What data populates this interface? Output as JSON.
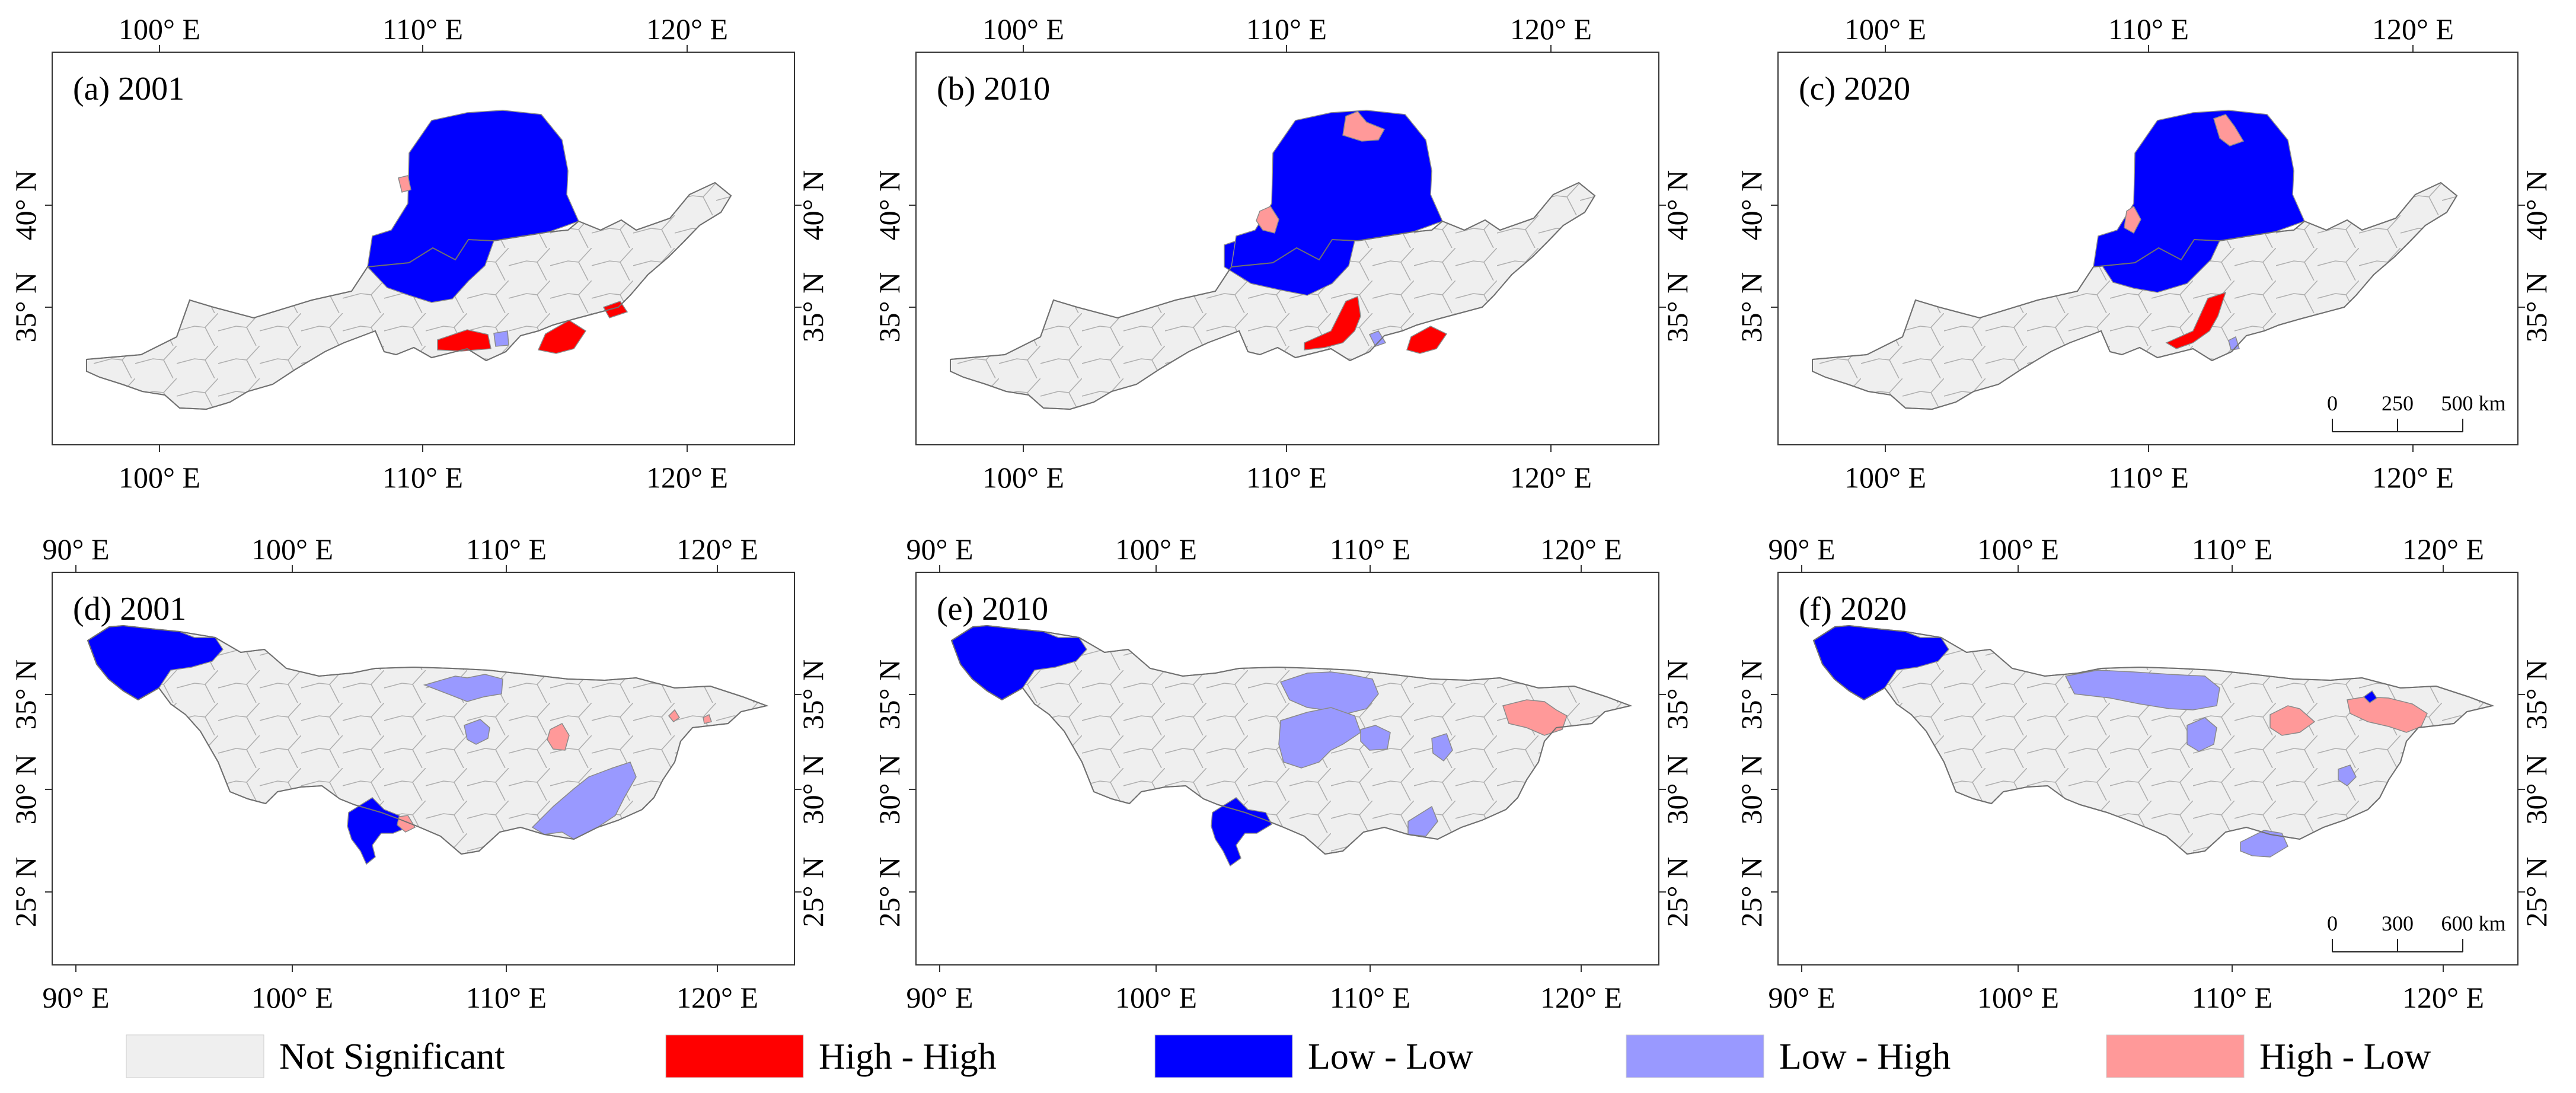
{
  "panels": [
    {
      "label": "(a) 2001",
      "region": "yellow",
      "x_ticks": [
        "100° E",
        "110° E",
        "120° E"
      ],
      "y_ticks": [
        "35° N",
        "40° N"
      ]
    },
    {
      "label": "(b) 2010",
      "region": "yellow",
      "x_ticks": [
        "100° E",
        "110° E",
        "120° E"
      ],
      "y_ticks": [
        "35° N",
        "40° N"
      ]
    },
    {
      "label": "(c) 2020",
      "region": "yellow",
      "x_ticks": [
        "100° E",
        "110° E",
        "120° E"
      ],
      "y_ticks": [
        "35° N",
        "40° N"
      ],
      "scale_bar": {
        "labels": [
          "0",
          "250",
          "500 km"
        ]
      }
    },
    {
      "label": "(d) 2001",
      "region": "yangtze",
      "x_ticks": [
        "90° E",
        "100° E",
        "110° E",
        "120° E"
      ],
      "y_ticks": [
        "25° N",
        "30° N",
        "35° N"
      ]
    },
    {
      "label": "(e) 2010",
      "region": "yangtze",
      "x_ticks": [
        "90° E",
        "100° E",
        "110° E",
        "120° E"
      ],
      "y_ticks": [
        "25° N",
        "30° N",
        "35° N"
      ]
    },
    {
      "label": "(f) 2020",
      "region": "yangtze",
      "x_ticks": [
        "90° E",
        "100° E",
        "110° E",
        "120° E"
      ],
      "y_ticks": [
        "25° N",
        "30° N",
        "35° N"
      ],
      "scale_bar": {
        "labels": [
          "0",
          "300",
          "600 km"
        ]
      }
    }
  ],
  "legend": [
    {
      "label": "Not Significant",
      "color": "#efefef"
    },
    {
      "label": "High - High",
      "color": "#ff0000"
    },
    {
      "label": "Low - Low",
      "color": "#0000ff"
    },
    {
      "label": "Low - High",
      "color": "#9999ff"
    },
    {
      "label": "High - Low",
      "color": "#ff9999"
    }
  ]
}
